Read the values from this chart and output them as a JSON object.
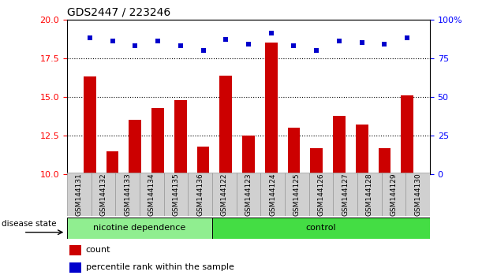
{
  "title": "GDS2447 / 223246",
  "samples": [
    "GSM144131",
    "GSM144132",
    "GSM144133",
    "GSM144134",
    "GSM144135",
    "GSM144136",
    "GSM144122",
    "GSM144123",
    "GSM144124",
    "GSM144125",
    "GSM144126",
    "GSM144127",
    "GSM144128",
    "GSM144129",
    "GSM144130"
  ],
  "counts": [
    16.3,
    11.5,
    13.5,
    14.3,
    14.8,
    11.8,
    16.4,
    12.5,
    18.5,
    13.0,
    11.7,
    13.8,
    13.2,
    11.7,
    15.1
  ],
  "percentiles": [
    88,
    86,
    83,
    86,
    83,
    80,
    87,
    84,
    91,
    83,
    80,
    86,
    85,
    84,
    88
  ],
  "nicotine_count": 6,
  "control_count": 9,
  "ylim_left": [
    10,
    20
  ],
  "ylim_right": [
    0,
    100
  ],
  "yticks_left": [
    10,
    12.5,
    15,
    17.5,
    20
  ],
  "yticks_right": [
    0,
    25,
    50,
    75,
    100
  ],
  "bar_color": "#cc0000",
  "dot_color": "#0000cc",
  "nicotine_bg": "#90EE90",
  "control_bg": "#44DD44",
  "tick_label_bg": "#d0d0d0",
  "tick_label_border": "#999999",
  "legend_count_label": "count",
  "legend_percentile_label": "percentile rank within the sample",
  "disease_state_label": "disease state",
  "nicotine_label": "nicotine dependence",
  "control_label": "control"
}
